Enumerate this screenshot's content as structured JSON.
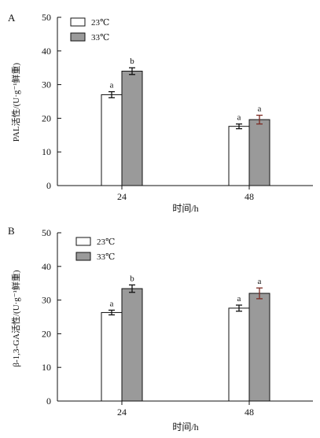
{
  "chart_data": [
    {
      "panel_label": "A",
      "type": "bar",
      "categories": [
        "24",
        "48"
      ],
      "series": [
        {
          "name": "23℃",
          "color": "#ffffff",
          "values": [
            27.0,
            17.6
          ],
          "errors": [
            0.9,
            0.7
          ],
          "letters": [
            "a",
            "a"
          ]
        },
        {
          "name": "33℃",
          "color": "#9a9a9a",
          "values": [
            34.0,
            19.6
          ],
          "errors": [
            1.0,
            1.3
          ],
          "letters": [
            "b",
            "a"
          ]
        }
      ],
      "title": "",
      "xlabel": "时间/h",
      "ylabel": "PAL活性/(U·g⁻¹鲜重)",
      "ylim": [
        0,
        50
      ],
      "yticks": [
        0,
        10,
        20,
        30,
        40,
        50
      ],
      "legend_position": "top-left"
    },
    {
      "panel_label": "B",
      "type": "bar",
      "categories": [
        "24",
        "48"
      ],
      "series": [
        {
          "name": "23℃",
          "color": "#ffffff",
          "values": [
            26.3,
            27.6
          ],
          "errors": [
            0.7,
            0.9
          ],
          "letters": [
            "a",
            "a"
          ]
        },
        {
          "name": "33℃",
          "color": "#9a9a9a",
          "values": [
            33.4,
            32.0
          ],
          "errors": [
            1.1,
            1.6
          ],
          "letters": [
            "b",
            "a"
          ]
        }
      ],
      "title": "",
      "xlabel": "时间/h",
      "ylabel": "β-1,3-GA活性/(U·g⁻¹鲜重)",
      "ylim": [
        0,
        50
      ],
      "yticks": [
        0,
        10,
        20,
        30,
        40,
        50
      ],
      "legend_position": "top-left"
    }
  ]
}
